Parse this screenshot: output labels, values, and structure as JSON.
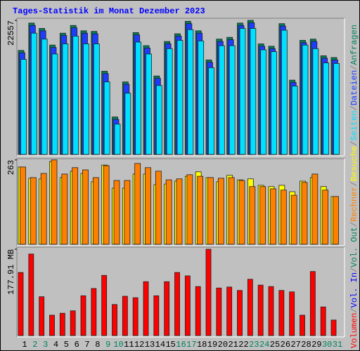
{
  "chart_data": [
    {
      "type": "bar",
      "title": "Tages-Statistik im Monat Dezember 2023",
      "ylim": [
        0,
        22911
      ],
      "yticks": [
        22557
      ],
      "series": [
        {
          "name": "Anfragen",
          "color": "#00805c",
          "values": [
            17500,
            22100,
            21200,
            18400,
            20400,
            21700,
            20800,
            20700,
            14000,
            6300,
            12200,
            20500,
            18300,
            13200,
            19000,
            20300,
            22400,
            20800,
            15900,
            19400,
            19700,
            22100,
            22557,
            18600,
            18200,
            22000,
            12500,
            19200,
            19400,
            16600,
            16300
          ]
        },
        {
          "name": "Dateien",
          "color": "#1e3cff",
          "values": [
            17100,
            21700,
            20800,
            18000,
            20000,
            21300,
            20400,
            20300,
            13600,
            5900,
            11800,
            20100,
            17900,
            12800,
            18600,
            19900,
            22000,
            20400,
            15500,
            19000,
            19300,
            21700,
            22150,
            18200,
            17800,
            21600,
            12100,
            18800,
            19000,
            16200,
            15900
          ]
        },
        {
          "name": "Seiten",
          "color": "#00e0ff",
          "values": [
            16000,
            20400,
            19400,
            16900,
            18600,
            19900,
            18600,
            18600,
            12200,
            5100,
            10300,
            18900,
            16900,
            11600,
            17800,
            19200,
            21000,
            19100,
            14600,
            18300,
            18300,
            21200,
            21200,
            17600,
            17300,
            20900,
            11500,
            18400,
            17800,
            15400,
            15300
          ]
        }
      ]
    },
    {
      "type": "bar",
      "ylim": [
        0,
        267
      ],
      "yticks": [
        263
      ],
      "series": [
        {
          "name": "Besuche",
          "color": "#ffff00",
          "values": [
            241,
            206,
            204,
            258,
            208,
            228,
            221,
            195,
            247,
            175,
            175,
            219,
            219,
            186,
            188,
            197,
            212,
            226,
            208,
            195,
            215,
            201,
            204,
            184,
            180,
            184,
            164,
            197,
            208,
            180,
            149
          ]
        },
        {
          "name": "Rechner",
          "color": "#ff8000",
          "values": [
            241,
            208,
            221,
            263,
            219,
            239,
            232,
            208,
            245,
            199,
            199,
            252,
            239,
            228,
            201,
            204,
            217,
            212,
            208,
            206,
            208,
            199,
            180,
            180,
            173,
            169,
            153,
            193,
            219,
            169,
            149
          ]
        }
      ]
    },
    {
      "type": "bar",
      "ylim": [
        0,
        182.25
      ],
      "yticks": [
        {
          "value": 177.91,
          "label": "177.91 MB"
        }
      ],
      "categories": [
        "1",
        "2",
        "3",
        "4",
        "5",
        "6",
        "7",
        "8",
        "9",
        "10",
        "11",
        "12",
        "13",
        "14",
        "15",
        "16",
        "17",
        "18",
        "19",
        "20",
        "21",
        "22",
        "23",
        "24",
        "25",
        "26",
        "27",
        "28",
        "29",
        "30",
        "31"
      ],
      "category_colors": [
        "#000000",
        "#00805c",
        "#00805c",
        "#000000",
        "#000000",
        "#000000",
        "#000000",
        "#000000",
        "#00805c",
        "#00805c",
        "#000000",
        "#000000",
        "#000000",
        "#000000",
        "#000000",
        "#00805c",
        "#00805c",
        "#000000",
        "#000000",
        "#000000",
        "#000000",
        "#000000",
        "#00805c",
        "#00805c",
        "#000000",
        "#000000",
        "#000000",
        "#000000",
        "#000000",
        "#00805c",
        "#00805c"
      ],
      "series": [
        {
          "name": "Volumen",
          "color": "#ff0000",
          "values": [
            130,
            168,
            80,
            42,
            46,
            51,
            82,
            97,
            124,
            64,
            81,
            78,
            111,
            82,
            111,
            130,
            123,
            101,
            177.91,
            98,
            100,
            93,
            116,
            104,
            101,
            93,
            90,
            42,
            132,
            59,
            32
          ]
        }
      ],
      "extra_legend": [
        {
          "name": "Vol. In",
          "color": "#0000ff"
        },
        {
          "name": "Vol. Out",
          "color": "#00805c"
        }
      ]
    }
  ],
  "legend_separator": "/"
}
